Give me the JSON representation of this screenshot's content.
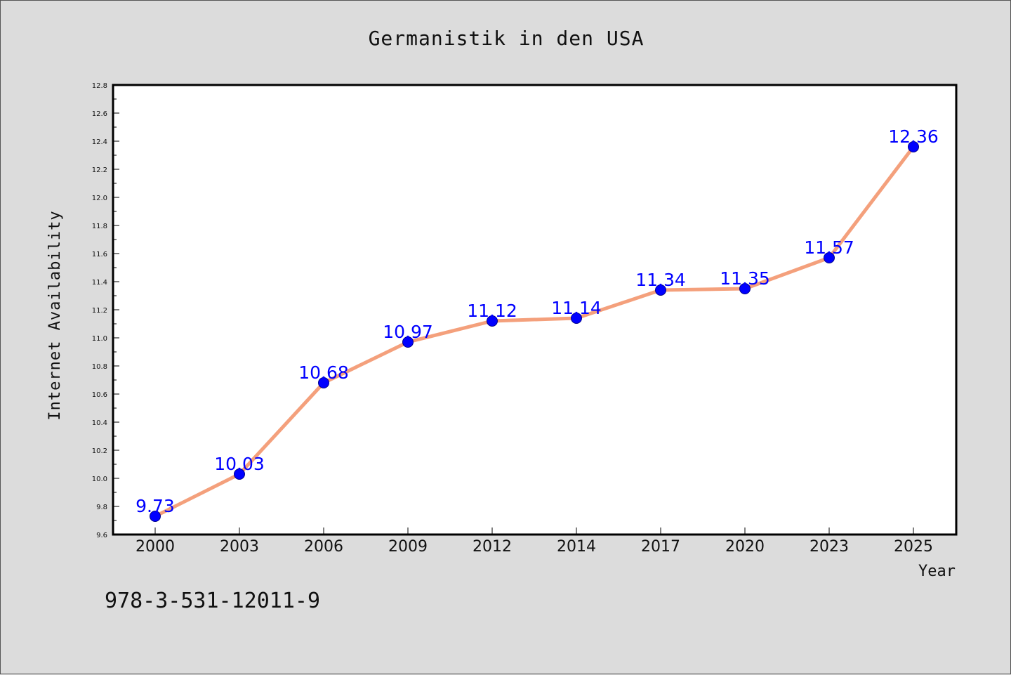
{
  "chart_data": {
    "type": "line",
    "title": "Germanistik in den USA",
    "xlabel": "Year",
    "ylabel": "Internet Availability",
    "categories": [
      "2000",
      "2003",
      "2006",
      "2009",
      "2012",
      "2014",
      "2017",
      "2020",
      "2023",
      "2025"
    ],
    "series": [
      {
        "values": [
          9.73,
          10.03,
          10.68,
          10.97,
          11.12,
          11.14,
          11.34,
          11.35,
          11.57,
          12.36
        ]
      }
    ],
    "data_labels": [
      "9.73",
      "10.03",
      "10.68",
      "10.97",
      "11.12",
      "11.14",
      "11.34",
      "11.35",
      "11.57",
      "12.36"
    ],
    "ylim": [
      9.6,
      12.8
    ],
    "yticks": [
      "9.6",
      "9.8",
      "10.0",
      "10.2",
      "10.4",
      "10.6",
      "10.8",
      "11.0",
      "11.2",
      "11.4",
      "11.6",
      "11.8",
      "12.0",
      "12.2",
      "12.4",
      "12.6",
      "12.8"
    ],
    "grid": false,
    "legend": "none",
    "colors": {
      "line": "#f4a07c",
      "marker": "#0000ff",
      "data_label": "#0000ff",
      "background": "#dcdcdc",
      "plot_background": "#ffffff"
    }
  },
  "footer_text": "978-3-531-12011-9"
}
